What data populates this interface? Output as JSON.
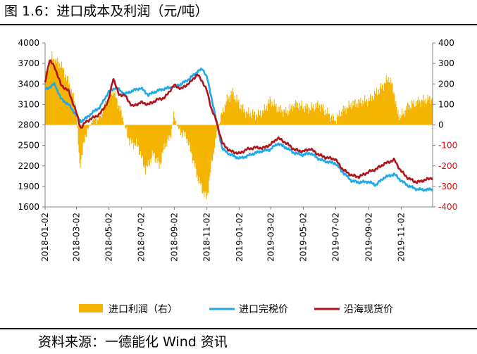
{
  "figure": {
    "title": "图 1.6：进口成本及利润（元/吨）",
    "source": "资料来源：一德能化  Wind 资讯"
  },
  "colors": {
    "profit": "#F5B400",
    "import_cost": "#1FA9E6",
    "coastal_spot": "#B0151D",
    "axis": "#808080",
    "right_negative_tick": "#FF0000"
  },
  "chart_data": {
    "type": "line",
    "grid": false,
    "legend_position": "bottom",
    "x_tick_labels": [
      "2018-01-02",
      "2018-03-02",
      "2018-05-02",
      "2018-07-02",
      "2018-09-02",
      "2018-11-02",
      "2019-01-02",
      "2019-03-02",
      "2019-05-02",
      "2019-07-02",
      "2019-09-02",
      "2019-11-02"
    ],
    "x_range": [
      "2018-01-02",
      "2019-12-31"
    ],
    "y_left": {
      "range": [
        1600,
        4000
      ],
      "ticks": [
        1600,
        1900,
        2200,
        2500,
        2800,
        3100,
        3400,
        3700,
        4000
      ]
    },
    "y_right": {
      "range": [
        -400,
        400
      ],
      "ticks": [
        -400,
        -300,
        -200,
        -100,
        0,
        100,
        200,
        300,
        400
      ]
    },
    "series": [
      {
        "name": "进口利润（右）",
        "type": "area",
        "axis": "right",
        "points": [
          [
            "2018-01-02",
            230
          ],
          [
            "2018-01-15",
            330
          ],
          [
            "2018-02-01",
            290
          ],
          [
            "2018-02-15",
            210
          ],
          [
            "2018-03-01",
            90
          ],
          [
            "2018-03-08",
            -200
          ],
          [
            "2018-03-20",
            -40
          ],
          [
            "2018-04-01",
            20
          ],
          [
            "2018-04-15",
            40
          ],
          [
            "2018-05-01",
            130
          ],
          [
            "2018-05-10",
            170
          ],
          [
            "2018-05-25",
            60
          ],
          [
            "2018-06-01",
            -10
          ],
          [
            "2018-06-10",
            -80
          ],
          [
            "2018-06-25",
            -100
          ],
          [
            "2018-07-10",
            -220
          ],
          [
            "2018-07-25",
            -140
          ],
          [
            "2018-08-05",
            -200
          ],
          [
            "2018-08-15",
            -100
          ],
          [
            "2018-08-25",
            -60
          ],
          [
            "2018-09-01",
            40
          ],
          [
            "2018-09-10",
            -20
          ],
          [
            "2018-09-25",
            -60
          ],
          [
            "2018-10-05",
            -150
          ],
          [
            "2018-10-15",
            -250
          ],
          [
            "2018-10-25",
            -320
          ],
          [
            "2018-11-02",
            -360
          ],
          [
            "2018-11-10",
            -200
          ],
          [
            "2018-11-20",
            -50
          ],
          [
            "2018-12-01",
            60
          ],
          [
            "2018-12-10",
            120
          ],
          [
            "2018-12-20",
            160
          ],
          [
            "2019-01-02",
            100
          ],
          [
            "2019-01-15",
            60
          ],
          [
            "2019-02-01",
            50
          ],
          [
            "2019-02-15",
            60
          ],
          [
            "2019-03-01",
            120
          ],
          [
            "2019-03-15",
            80
          ],
          [
            "2019-04-01",
            60
          ],
          [
            "2019-04-15",
            100
          ],
          [
            "2019-05-01",
            90
          ],
          [
            "2019-05-15",
            80
          ],
          [
            "2019-06-01",
            100
          ],
          [
            "2019-06-15",
            60
          ],
          [
            "2019-07-01",
            20
          ],
          [
            "2019-07-15",
            70
          ],
          [
            "2019-08-01",
            100
          ],
          [
            "2019-08-15",
            110
          ],
          [
            "2019-09-01",
            120
          ],
          [
            "2019-09-15",
            150
          ],
          [
            "2019-10-01",
            200
          ],
          [
            "2019-10-10",
            230
          ],
          [
            "2019-10-20",
            160
          ],
          [
            "2019-10-25",
            60
          ],
          [
            "2019-11-01",
            40
          ],
          [
            "2019-11-15",
            90
          ],
          [
            "2019-12-01",
            110
          ],
          [
            "2019-12-15",
            120
          ],
          [
            "2019-12-31",
            130
          ]
        ]
      },
      {
        "name": "进口完税价",
        "type": "line",
        "axis": "left",
        "points": [
          [
            "2018-01-02",
            3320
          ],
          [
            "2018-01-10",
            3350
          ],
          [
            "2018-01-20",
            3400
          ],
          [
            "2018-02-01",
            3180
          ],
          [
            "2018-02-15",
            3100
          ],
          [
            "2018-03-01",
            2950
          ],
          [
            "2018-03-10",
            2850
          ],
          [
            "2018-03-20",
            2900
          ],
          [
            "2018-04-01",
            2980
          ],
          [
            "2018-04-15",
            3060
          ],
          [
            "2018-05-01",
            3280
          ],
          [
            "2018-05-15",
            3350
          ],
          [
            "2018-06-01",
            3250
          ],
          [
            "2018-06-15",
            3300
          ],
          [
            "2018-07-01",
            3340
          ],
          [
            "2018-07-15",
            3240
          ],
          [
            "2018-08-01",
            3300
          ],
          [
            "2018-08-15",
            3330
          ],
          [
            "2018-09-01",
            3360
          ],
          [
            "2018-09-15",
            3400
          ],
          [
            "2018-10-01",
            3480
          ],
          [
            "2018-10-15",
            3580
          ],
          [
            "2018-10-25",
            3620
          ],
          [
            "2018-11-02",
            3500
          ],
          [
            "2018-11-12",
            3150
          ],
          [
            "2018-11-20",
            2850
          ],
          [
            "2018-12-01",
            2450
          ],
          [
            "2018-12-15",
            2370
          ],
          [
            "2019-01-02",
            2310
          ],
          [
            "2019-01-15",
            2340
          ],
          [
            "2019-02-01",
            2390
          ],
          [
            "2019-02-15",
            2420
          ],
          [
            "2019-03-01",
            2440
          ],
          [
            "2019-03-15",
            2530
          ],
          [
            "2019-04-01",
            2460
          ],
          [
            "2019-04-15",
            2390
          ],
          [
            "2019-05-01",
            2360
          ],
          [
            "2019-05-15",
            2390
          ],
          [
            "2019-06-01",
            2300
          ],
          [
            "2019-06-15",
            2260
          ],
          [
            "2019-07-01",
            2240
          ],
          [
            "2019-07-15",
            2110
          ],
          [
            "2019-08-01",
            1980
          ],
          [
            "2019-08-15",
            1960
          ],
          [
            "2019-09-01",
            1970
          ],
          [
            "2019-09-15",
            1920
          ],
          [
            "2019-10-01",
            2030
          ],
          [
            "2019-10-20",
            2080
          ],
          [
            "2019-11-01",
            1990
          ],
          [
            "2019-11-15",
            1910
          ],
          [
            "2019-12-01",
            1860
          ],
          [
            "2019-12-15",
            1850
          ],
          [
            "2019-12-31",
            1860
          ]
        ]
      },
      {
        "name": "沿海现货价",
        "type": "line",
        "axis": "left",
        "points": [
          [
            "2018-01-02",
            3420
          ],
          [
            "2018-01-10",
            3750
          ],
          [
            "2018-01-20",
            3650
          ],
          [
            "2018-02-01",
            3380
          ],
          [
            "2018-02-15",
            3300
          ],
          [
            "2018-03-01",
            3000
          ],
          [
            "2018-03-10",
            2750
          ],
          [
            "2018-03-20",
            2850
          ],
          [
            "2018-04-01",
            2900
          ],
          [
            "2018-04-15",
            2960
          ],
          [
            "2018-05-01",
            3150
          ],
          [
            "2018-05-10",
            3490
          ],
          [
            "2018-05-20",
            3250
          ],
          [
            "2018-06-01",
            3230
          ],
          [
            "2018-06-15",
            3070
          ],
          [
            "2018-07-01",
            3130
          ],
          [
            "2018-07-15",
            3100
          ],
          [
            "2018-08-01",
            3170
          ],
          [
            "2018-08-15",
            3200
          ],
          [
            "2018-09-01",
            3380
          ],
          [
            "2018-09-15",
            3330
          ],
          [
            "2018-10-01",
            3420
          ],
          [
            "2018-10-15",
            3540
          ],
          [
            "2018-10-25",
            3430
          ],
          [
            "2018-11-02",
            3300
          ],
          [
            "2018-11-10",
            3050
          ],
          [
            "2018-11-20",
            2850
          ],
          [
            "2018-12-01",
            2530
          ],
          [
            "2018-12-15",
            2420
          ],
          [
            "2019-01-02",
            2380
          ],
          [
            "2019-01-15",
            2440
          ],
          [
            "2019-02-01",
            2470
          ],
          [
            "2019-02-15",
            2460
          ],
          [
            "2019-03-01",
            2510
          ],
          [
            "2019-03-15",
            2610
          ],
          [
            "2019-04-01",
            2530
          ],
          [
            "2019-04-15",
            2440
          ],
          [
            "2019-05-01",
            2410
          ],
          [
            "2019-05-15",
            2450
          ],
          [
            "2019-06-01",
            2360
          ],
          [
            "2019-06-15",
            2320
          ],
          [
            "2019-07-01",
            2300
          ],
          [
            "2019-07-15",
            2150
          ],
          [
            "2019-08-01",
            2060
          ],
          [
            "2019-08-15",
            2040
          ],
          [
            "2019-09-01",
            2110
          ],
          [
            "2019-09-15",
            2150
          ],
          [
            "2019-10-01",
            2230
          ],
          [
            "2019-10-20",
            2290
          ],
          [
            "2019-11-01",
            2130
          ],
          [
            "2019-11-15",
            2020
          ],
          [
            "2019-12-01",
            1960
          ],
          [
            "2019-12-15",
            1990
          ],
          [
            "2019-12-31",
            2030
          ]
        ]
      }
    ]
  }
}
